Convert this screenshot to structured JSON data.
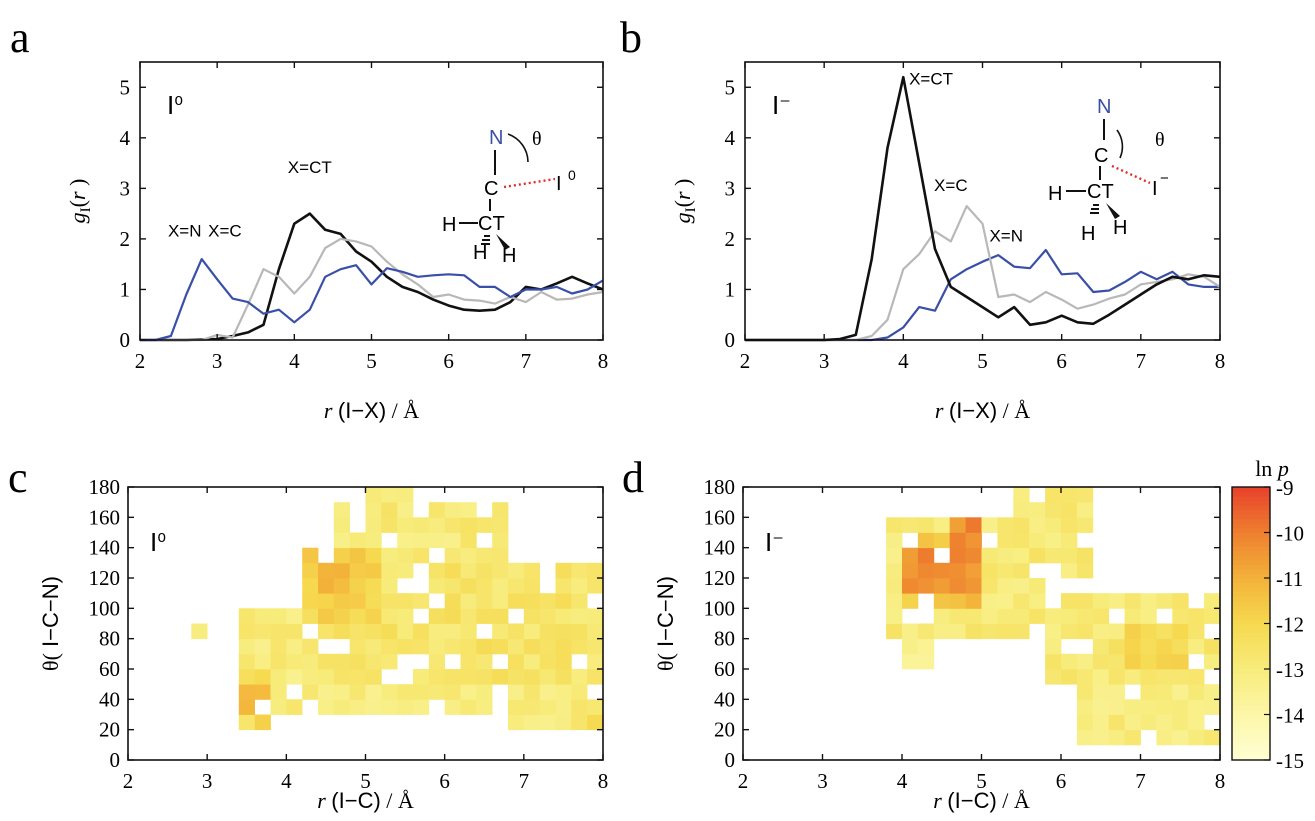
{
  "colors": {
    "black": "#111111",
    "gray": "#b8b8b8",
    "blue": "#3a4fa8",
    "nitrogen_blue": "#3a4fa8",
    "dotted_red": "#e0302a",
    "colormap": [
      "#ffffd4",
      "#fcf7a8",
      "#f7ec7c",
      "#f6d94f",
      "#f3b23a",
      "#ee7f2f",
      "#e8412c"
    ]
  },
  "chart_data": [
    {
      "type": "line",
      "panel": "a",
      "ion_label": "I⁰",
      "xlabel": "r (I−X) / Å",
      "ylabel": "gI(r)",
      "xlim": [
        2,
        8
      ],
      "ylim": [
        0,
        5.5
      ],
      "xticks": [
        "2",
        "3",
        "4",
        "5",
        "6",
        "7",
        "8"
      ],
      "yticks": [
        "0",
        "1",
        "2",
        "3",
        "4",
        "5"
      ],
      "series": [
        {
          "name": "X=N",
          "color": "blue",
          "label_at": [
            2.58,
            2.05
          ],
          "x": [
            2.0,
            2.2,
            2.4,
            2.6,
            2.8,
            3.0,
            3.2,
            3.4,
            3.6,
            3.8,
            4.0,
            4.2,
            4.4,
            4.6,
            4.8,
            5.0,
            5.2,
            5.4,
            5.6,
            5.8,
            6.0,
            6.2,
            6.4,
            6.6,
            6.8,
            7.0,
            7.2,
            7.4,
            7.6,
            7.8,
            8.0
          ],
          "y": [
            0,
            0,
            0.08,
            0.9,
            1.6,
            1.2,
            0.82,
            0.75,
            0.52,
            0.6,
            0.35,
            0.6,
            1.25,
            1.4,
            1.48,
            1.1,
            1.42,
            1.35,
            1.25,
            1.28,
            1.3,
            1.28,
            1.05,
            1.05,
            0.85,
            1.0,
            1.0,
            1.05,
            0.92,
            1.0,
            1.18
          ]
        },
        {
          "name": "X=C",
          "color": "gray",
          "label_at": [
            3.1,
            2.05
          ],
          "x": [
            2.0,
            2.4,
            2.8,
            3.0,
            3.2,
            3.4,
            3.6,
            3.8,
            4.0,
            4.2,
            4.4,
            4.6,
            4.8,
            5.0,
            5.2,
            5.4,
            5.6,
            5.8,
            6.0,
            6.2,
            6.4,
            6.6,
            6.8,
            7.0,
            7.2,
            7.4,
            7.6,
            7.8,
            8.0
          ],
          "y": [
            0,
            0,
            0,
            0.1,
            0.05,
            0.7,
            1.4,
            1.25,
            0.92,
            1.25,
            1.82,
            2.0,
            1.95,
            1.85,
            1.55,
            1.3,
            1.1,
            0.85,
            0.9,
            0.8,
            0.78,
            0.72,
            0.85,
            0.75,
            0.95,
            0.8,
            0.82,
            0.9,
            0.95
          ]
        },
        {
          "name": "X=CT",
          "color": "black",
          "label_at": [
            4.2,
            3.3
          ],
          "x": [
            2.0,
            2.6,
            3.0,
            3.2,
            3.4,
            3.6,
            3.8,
            4.0,
            4.2,
            4.4,
            4.6,
            4.8,
            5.0,
            5.2,
            5.4,
            5.6,
            5.8,
            6.0,
            6.2,
            6.4,
            6.6,
            6.8,
            7.0,
            7.2,
            7.4,
            7.6,
            7.8,
            8.0
          ],
          "y": [
            0,
            0,
            0.02,
            0.08,
            0.15,
            0.3,
            1.4,
            2.3,
            2.5,
            2.18,
            2.1,
            1.75,
            1.55,
            1.25,
            1.05,
            0.95,
            0.8,
            0.68,
            0.6,
            0.58,
            0.6,
            0.75,
            1.05,
            1.0,
            1.12,
            1.25,
            1.12,
            1.0
          ]
        }
      ]
    },
    {
      "type": "line",
      "panel": "b",
      "ion_label": "I⁻",
      "xlabel": "r (I−X) / Å",
      "ylabel": "gI(r)",
      "xlim": [
        2,
        8
      ],
      "ylim": [
        0,
        5.5
      ],
      "xticks": [
        "2",
        "3",
        "4",
        "5",
        "6",
        "7",
        "8"
      ],
      "yticks": [
        "0",
        "1",
        "2",
        "3",
        "4",
        "5"
      ],
      "series": [
        {
          "name": "X=CT",
          "color": "black",
          "label_at": [
            4.35,
            5.05
          ],
          "x": [
            2.0,
            3.0,
            3.2,
            3.4,
            3.6,
            3.8,
            4.0,
            4.2,
            4.4,
            4.6,
            4.8,
            5.0,
            5.2,
            5.4,
            5.6,
            5.8,
            6.0,
            6.2,
            6.4,
            6.6,
            6.8,
            7.0,
            7.2,
            7.4,
            7.6,
            7.8,
            8.0
          ],
          "y": [
            0,
            0,
            0.02,
            0.1,
            1.6,
            3.8,
            5.2,
            3.5,
            1.8,
            1.05,
            0.85,
            0.65,
            0.45,
            0.65,
            0.3,
            0.35,
            0.48,
            0.35,
            0.32,
            0.5,
            0.7,
            0.9,
            1.1,
            1.25,
            1.2,
            1.28,
            1.25
          ]
        },
        {
          "name": "X=C",
          "color": "gray",
          "label_at": [
            4.6,
            2.95
          ],
          "x": [
            2.0,
            3.4,
            3.6,
            3.8,
            4.0,
            4.2,
            4.4,
            4.6,
            4.8,
            5.0,
            5.2,
            5.4,
            5.6,
            5.8,
            6.0,
            6.2,
            6.4,
            6.6,
            6.8,
            7.0,
            7.2,
            7.4,
            7.6,
            7.8,
            8.0
          ],
          "y": [
            0,
            0,
            0.08,
            0.4,
            1.4,
            1.7,
            2.15,
            1.95,
            2.65,
            2.3,
            0.85,
            0.9,
            0.75,
            0.95,
            0.8,
            0.62,
            0.7,
            0.82,
            0.9,
            1.1,
            1.15,
            1.2,
            1.3,
            1.25,
            1.05
          ]
        },
        {
          "name": "X=N",
          "color": "blue",
          "label_at": [
            5.3,
            1.95
          ],
          "x": [
            2.0,
            3.6,
            3.8,
            4.0,
            4.2,
            4.4,
            4.6,
            4.8,
            5.0,
            5.2,
            5.4,
            5.6,
            5.8,
            6.0,
            6.2,
            6.4,
            6.6,
            6.8,
            7.0,
            7.2,
            7.4,
            7.6,
            7.8,
            8.0
          ],
          "y": [
            0,
            0,
            0.05,
            0.25,
            0.65,
            0.58,
            1.2,
            1.4,
            1.55,
            1.68,
            1.45,
            1.42,
            1.78,
            1.3,
            1.32,
            0.95,
            0.98,
            1.15,
            1.35,
            1.2,
            1.35,
            1.1,
            1.05,
            1.05
          ]
        }
      ]
    },
    {
      "type": "heatmap",
      "panel": "c",
      "ion_label": "I⁰",
      "xlabel": "r (I−C) / Å",
      "ylabel": "θ( I−C−N)",
      "xlim": [
        2,
        8
      ],
      "ylim": [
        0,
        180
      ],
      "xticks": [
        "2",
        "3",
        "4",
        "5",
        "6",
        "7",
        "8"
      ],
      "yticks": [
        "0",
        "20",
        "40",
        "60",
        "80",
        "100",
        "120",
        "140",
        "160",
        "180"
      ],
      "value_range": [
        -15,
        -9
      ],
      "bin_dr": 0.2,
      "bin_dtheta": 10,
      "regions": [
        {
          "r": [
            3.4,
            4.4
          ],
          "theta": [
            30,
            100
          ],
          "v": -13.0
        },
        {
          "r": [
            4.2,
            8.0
          ],
          "theta": [
            50,
            130
          ],
          "v": -12.6
        },
        {
          "r": [
            4.6,
            6.8
          ],
          "theta": [
            120,
            170
          ],
          "v": -12.9
        },
        {
          "r": [
            5.0,
            5.8
          ],
          "theta": [
            160,
            180
          ],
          "v": -12.9
        },
        {
          "r": [
            6.8,
            8.0
          ],
          "theta": [
            20,
            60
          ],
          "v": -13.0
        },
        {
          "r": [
            4.2,
            6.6
          ],
          "theta": [
            30,
            60
          ],
          "v": -13.1
        },
        {
          "r": [
            3.4,
            3.9
          ],
          "theta": [
            20,
            60
          ],
          "v": -12.2
        },
        {
          "r": [
            3.5,
            3.8
          ],
          "theta": [
            30,
            50
          ],
          "v": -10.9
        },
        {
          "r": [
            4.3,
            5.1
          ],
          "theta": [
            90,
            140
          ],
          "v": -11.9
        },
        {
          "r": [
            4.5,
            5.0
          ],
          "theta": [
            110,
            140
          ],
          "v": -11.4
        },
        {
          "r": [
            2.8,
            3.0
          ],
          "theta": [
            80,
            90
          ],
          "v": -13.0
        },
        {
          "r": [
            3.8,
            4.1
          ],
          "theta": [
            10,
            20
          ],
          "v": -12.3
        },
        {
          "r": [
            7.8,
            8.0
          ],
          "theta": [
            10,
            30
          ],
          "v": -11.7
        }
      ]
    },
    {
      "type": "heatmap",
      "panel": "d",
      "ion_label": "I⁻",
      "xlabel": "r (I−C) / Å",
      "ylabel": "θ( I−C−N)",
      "xlim": [
        2,
        8
      ],
      "ylim": [
        0,
        180
      ],
      "xticks": [
        "2",
        "3",
        "4",
        "5",
        "6",
        "7",
        "8"
      ],
      "yticks": [
        "0",
        "20",
        "40",
        "60",
        "80",
        "100",
        "120",
        "140",
        "160",
        "180"
      ],
      "value_range": [
        -15,
        -9
      ],
      "bin_dr": 0.2,
      "bin_dtheta": 10,
      "colorbar_title": "ln p",
      "colorbar_ticks": [
        "-9",
        "-10",
        "-11",
        "-12",
        "-13",
        "-14",
        "-15"
      ],
      "regions": [
        {
          "r": [
            3.8,
            6.0
          ],
          "theta": [
            80,
            160
          ],
          "v": -12.9
        },
        {
          "r": [
            5.4,
            6.4
          ],
          "theta": [
            120,
            180
          ],
          "v": -12.8
        },
        {
          "r": [
            4.0,
            5.0
          ],
          "theta": [
            100,
            150
          ],
          "v": -11.4
        },
        {
          "r": [
            4.1,
            4.9
          ],
          "theta": [
            110,
            140
          ],
          "v": -10.4
        },
        {
          "r": [
            4.6,
            5.0
          ],
          "theta": [
            125,
            155
          ],
          "v": -10.2
        },
        {
          "r": [
            5.8,
            8.0
          ],
          "theta": [
            50,
            110
          ],
          "v": -12.8
        },
        {
          "r": [
            6.2,
            8.0
          ],
          "theta": [
            10,
            60
          ],
          "v": -13.0
        },
        {
          "r": [
            6.8,
            7.6
          ],
          "theta": [
            60,
            90
          ],
          "v": -12.2
        },
        {
          "r": [
            4.0,
            4.4
          ],
          "theta": [
            60,
            80
          ],
          "v": -13.4
        }
      ]
    }
  ]
}
